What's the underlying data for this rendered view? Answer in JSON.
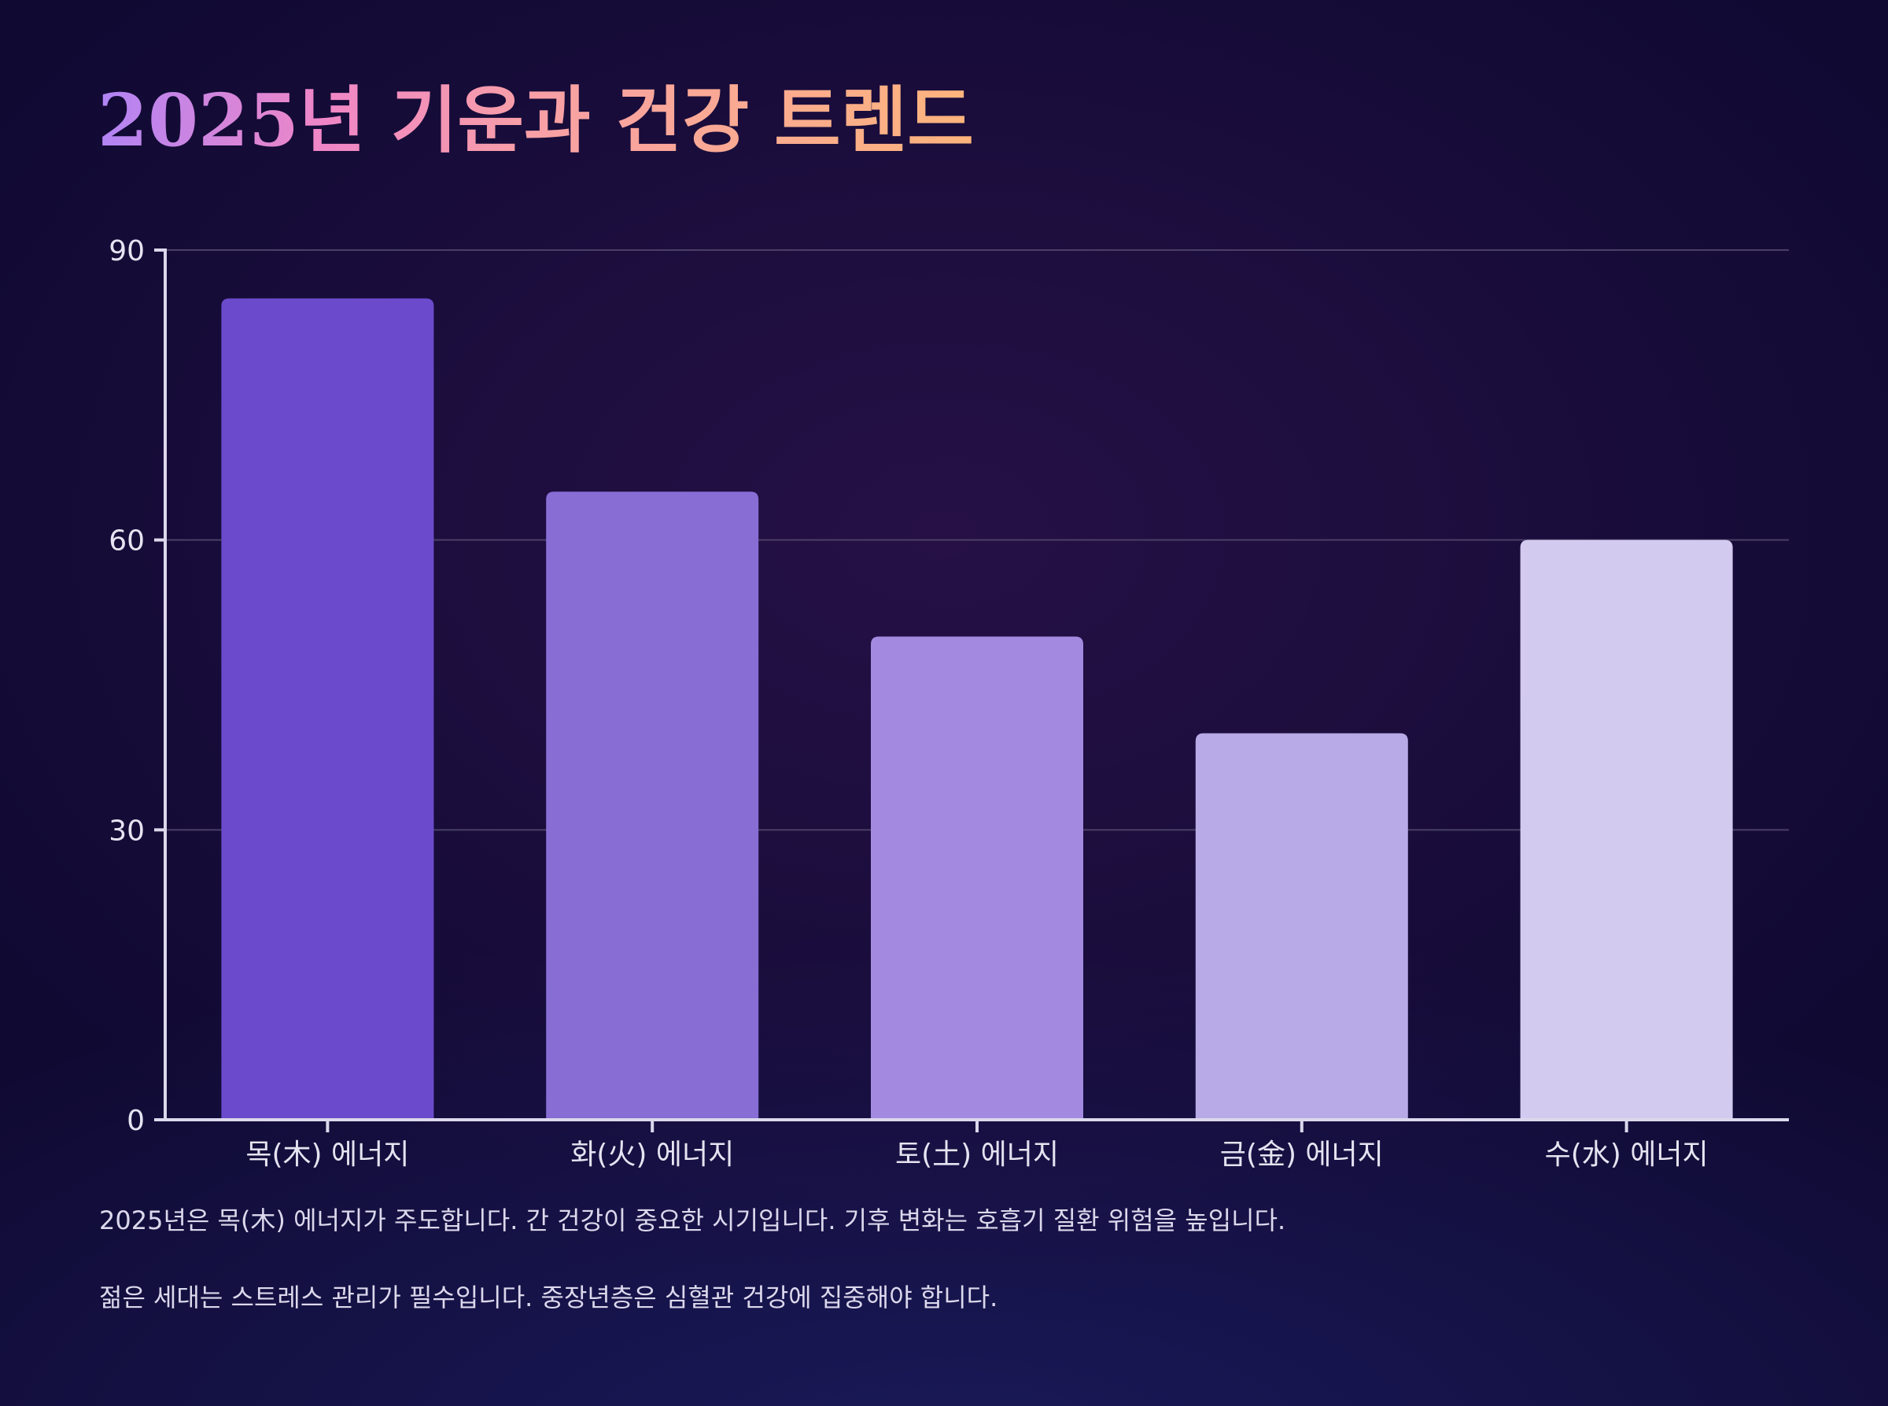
{
  "title": "2025년 기운과 건강 트렌드",
  "chart_data": {
    "type": "bar",
    "title": "2025년 기운과 건강 트렌드",
    "categories": [
      "목(木) 에너지",
      "화(火) 에너지",
      "토(土) 에너지",
      "금(金) 에너지",
      "수(水) 에너지"
    ],
    "values": [
      85,
      65,
      50,
      40,
      60
    ],
    "colors": [
      "#6b4bcc",
      "#876dd4",
      "#a38ae0",
      "#b8aae6",
      "#d3cbef"
    ],
    "xlabel": "",
    "ylabel": "",
    "ylim": [
      0,
      90
    ],
    "yticks": [
      0,
      30,
      60,
      90
    ],
    "grid": true,
    "legend": "none"
  },
  "notes": [
    "2025년은 목(木) 에너지가 주도합니다. 간 건강이 중요한 시기입니다. 기후 변화는 호흡기 질환 위험을 높입니다.",
    "젊은 세대는 스트레스 관리가 필수입니다. 중장년층은 심혈관 건강에 집중해야 합니다."
  ],
  "colors": {
    "background": "#100a33",
    "grid": "#4a3f66",
    "axis": "#dcd8ec",
    "text": "#e6e3f1"
  }
}
